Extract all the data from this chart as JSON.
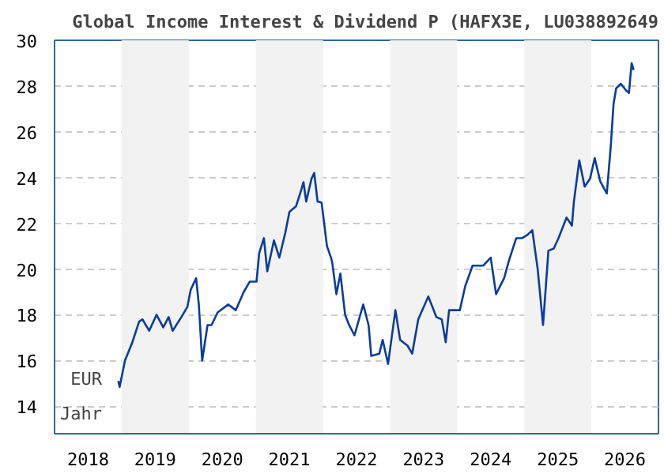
{
  "chart_data": {
    "type": "line",
    "title": "Global Income Interest & Dividend P (HAFX3E, LU038892649",
    "xlabel": "Jahr",
    "ylabel": "EUR",
    "x": [
      2018.95,
      2018.97,
      2019.05,
      2019.16,
      2019.26,
      2019.31,
      2019.41,
      2019.52,
      2019.62,
      2019.7,
      2019.76,
      2019.89,
      2019.98,
      2020.03,
      2020.11,
      2020.15,
      2020.2,
      2020.28,
      2020.34,
      2020.43,
      2020.59,
      2020.7,
      2020.82,
      2020.91,
      2021.01,
      2021.05,
      2021.12,
      2021.17,
      2021.27,
      2021.35,
      2021.44,
      2021.5,
      2021.6,
      2021.67,
      2021.71,
      2021.75,
      2021.83,
      2021.87,
      2021.92,
      2021.98,
      2022.06,
      2022.12,
      2022.14,
      2022.2,
      2022.26,
      2022.33,
      2022.39,
      2022.47,
      2022.6,
      2022.68,
      2022.72,
      2022.84,
      2022.89,
      2022.97,
      2023.08,
      2023.15,
      2023.26,
      2023.33,
      2023.42,
      2023.57,
      2023.69,
      2023.77,
      2023.83,
      2023.88,
      2024.04,
      2024.12,
      2024.23,
      2024.39,
      2024.5,
      2024.58,
      2024.7,
      2024.77,
      2024.88,
      2024.97,
      2025.05,
      2025.12,
      2025.2,
      2025.28,
      2025.36,
      2025.44,
      2025.51,
      2025.63,
      2025.71,
      2025.74,
      2025.82,
      2025.9,
      2025.98,
      2026.05,
      2026.13,
      2026.23,
      2026.29,
      2026.33,
      2026.37,
      2026.44,
      2026.52,
      2026.56,
      2026.6,
      2026.63
    ],
    "series": [
      {
        "color": "#0a3c9c",
        "values": [
          15.1,
          14.85,
          16.0,
          16.8,
          17.7,
          17.8,
          17.3,
          18.0,
          17.45,
          17.9,
          17.3,
          17.9,
          18.35,
          19.1,
          19.6,
          18.45,
          16.0,
          17.55,
          17.55,
          18.1,
          18.45,
          18.2,
          19.0,
          19.45,
          19.45,
          20.7,
          21.35,
          19.9,
          21.25,
          20.5,
          21.6,
          22.5,
          22.75,
          23.4,
          23.8,
          22.95,
          23.95,
          24.2,
          22.95,
          22.9,
          21.0,
          20.5,
          20.25,
          18.9,
          19.8,
          18.0,
          17.55,
          17.1,
          18.45,
          17.55,
          16.2,
          16.3,
          16.9,
          15.85,
          18.2,
          16.9,
          16.65,
          16.3,
          17.8,
          18.8,
          17.9,
          17.8,
          16.8,
          18.2,
          18.2,
          19.25,
          20.15,
          20.15,
          20.5,
          18.9,
          19.6,
          20.35,
          21.35,
          21.35,
          21.5,
          21.7,
          20.0,
          17.55,
          20.8,
          20.9,
          21.35,
          22.25,
          21.9,
          22.95,
          24.75,
          23.6,
          23.95,
          24.85,
          23.85,
          23.3,
          25.4,
          27.2,
          27.9,
          28.1,
          27.8,
          27.7,
          29.0,
          28.7
        ]
      }
    ],
    "xlim": [
      2018,
      2027
    ],
    "ylim": [
      12.8,
      30
    ],
    "xticks": [
      {
        "value": 2018.5,
        "label": "2018"
      },
      {
        "value": 2019.5,
        "label": "2019"
      },
      {
        "value": 2020.5,
        "label": "2020"
      },
      {
        "value": 2021.5,
        "label": "2021"
      },
      {
        "value": 2022.5,
        "label": "2022"
      },
      {
        "value": 2023.5,
        "label": "2023"
      },
      {
        "value": 2024.5,
        "label": "2024"
      },
      {
        "value": 2025.5,
        "label": "2025"
      },
      {
        "value": 2026.5,
        "label": "2026"
      }
    ],
    "yticks": [
      14,
      16,
      18,
      20,
      22,
      24,
      26,
      28,
      30
    ],
    "bands": [
      {
        "axis": "x",
        "from": 2019,
        "to": 2020,
        "color": "#f2f2f2"
      },
      {
        "axis": "x",
        "from": 2021,
        "to": 2022,
        "color": "#f2f2f2"
      },
      {
        "axis": "x",
        "from": 2023,
        "to": 2024,
        "color": "#f2f2f2"
      },
      {
        "axis": "x",
        "from": 2025,
        "to": 2026,
        "color": "#f2f2f2"
      }
    ],
    "grid": "y",
    "line_style": "solid"
  }
}
